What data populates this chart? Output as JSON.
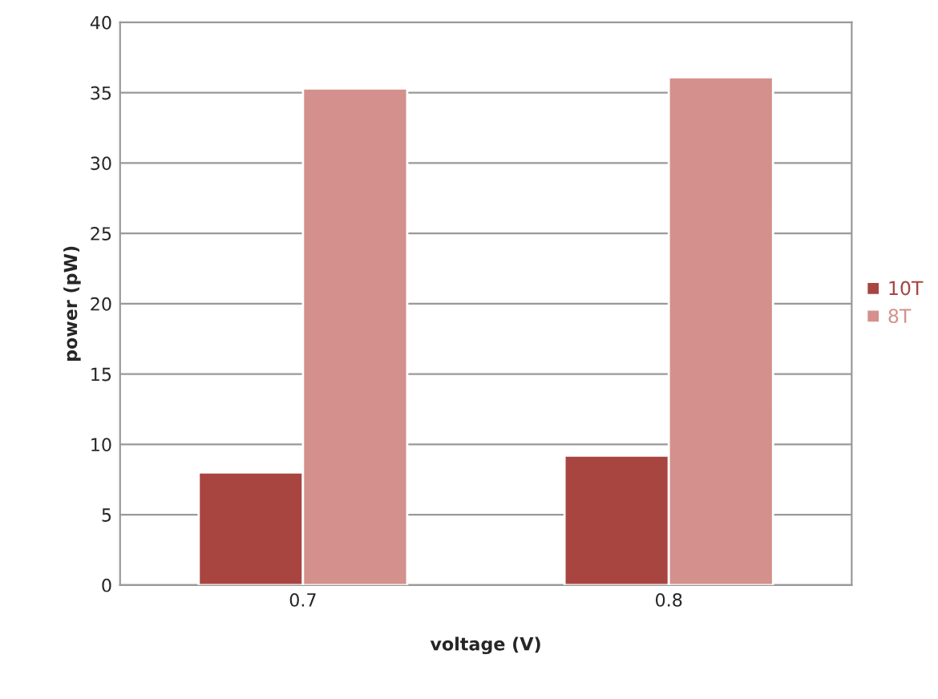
{
  "chart_data": {
    "type": "bar",
    "xlabel": "voltage (V)",
    "ylabel": "power (pW)",
    "categories": [
      "0.7",
      "0.8"
    ],
    "series": [
      {
        "name": "10T",
        "color": "#a84541",
        "values": [
          8.0,
          9.2
        ]
      },
      {
        "name": "8T",
        "color": "#d4908c",
        "values": [
          35.3,
          36.1
        ]
      }
    ],
    "ylim": [
      0,
      40
    ],
    "yticks": [
      0,
      5,
      10,
      15,
      20,
      25,
      30,
      35,
      40
    ],
    "grid": "y",
    "legend": "right"
  }
}
